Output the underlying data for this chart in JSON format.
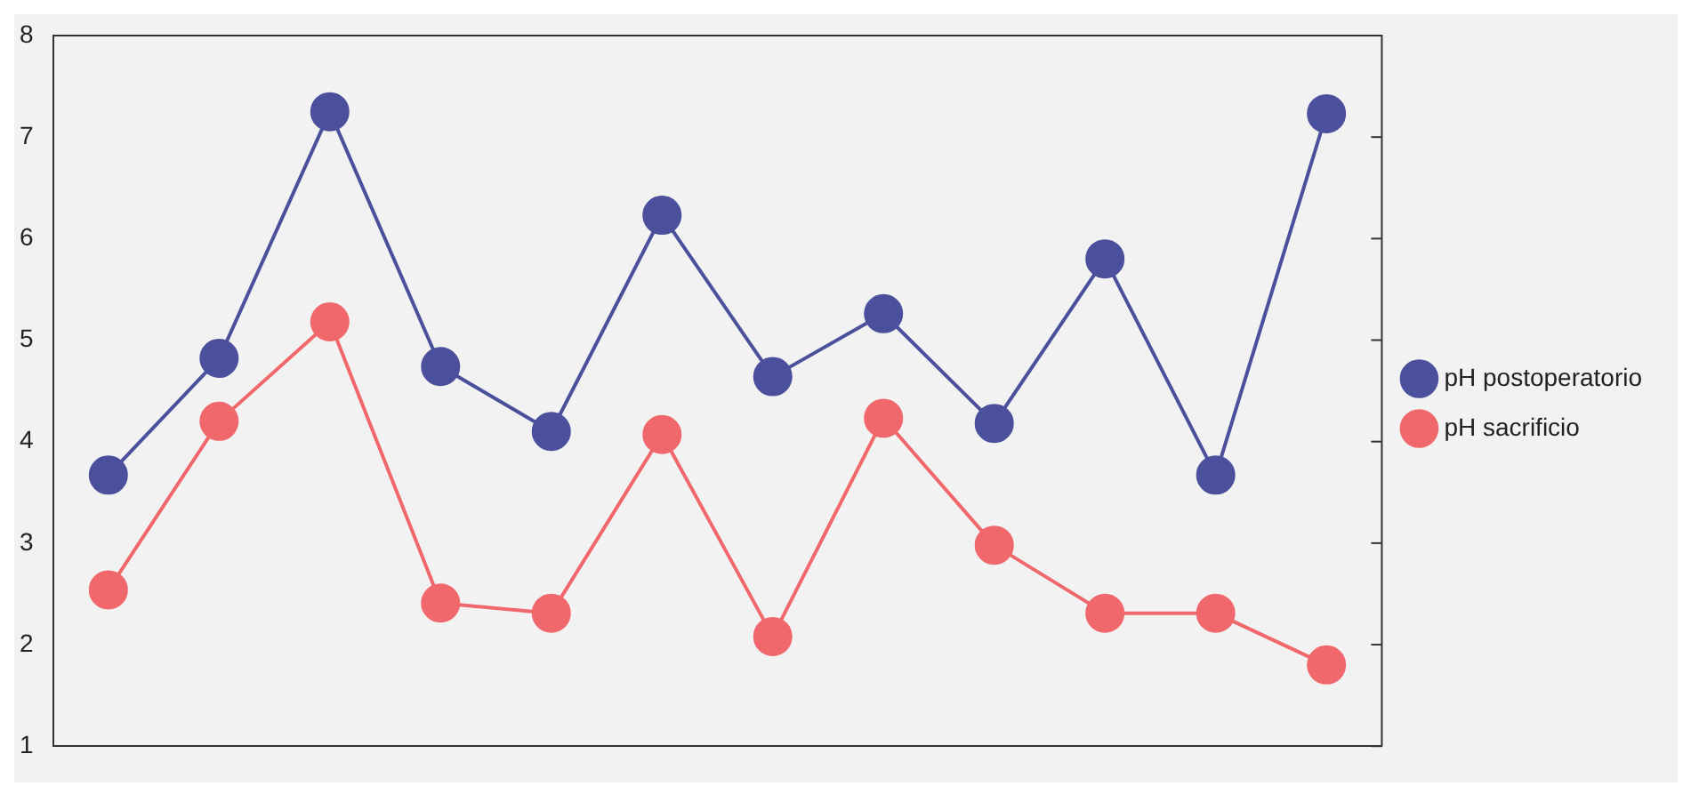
{
  "chart_data": {
    "type": "line",
    "categories": [
      null,
      null,
      null,
      null,
      null,
      null,
      null,
      null,
      null,
      null,
      null,
      null
    ],
    "series": [
      {
        "name": "pH postoperatorio",
        "color": "#4b509c",
        "values": [
          3.67,
          4.82,
          7.25,
          4.74,
          4.1,
          6.23,
          4.64,
          5.26,
          4.18,
          5.8,
          3.67,
          7.23
        ]
      },
      {
        "name": "pH sacrificio",
        "color": "#f0686c",
        "values": [
          2.54,
          4.2,
          5.18,
          2.41,
          2.31,
          4.07,
          2.08,
          4.23,
          2.98,
          2.31,
          2.31,
          1.8
        ]
      }
    ],
    "ylim": [
      1,
      8
    ],
    "yticks": [
      1,
      2,
      3,
      4,
      5,
      6,
      7,
      8
    ],
    "grid": false,
    "legend": "right",
    "marker": "circle",
    "line_style": "solid"
  }
}
